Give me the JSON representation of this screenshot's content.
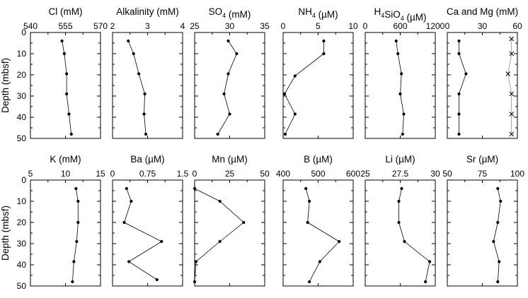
{
  "chart_data": [
    {
      "type": "line",
      "title": "Cl (mM)",
      "xlim": [
        540,
        570
      ],
      "xticks": [
        "540",
        "555",
        "570"
      ],
      "ylabel": "Depth (mbsf)",
      "ylim": [
        0,
        50
      ],
      "yticks": [
        "0",
        "10",
        "20",
        "30",
        "40",
        "50"
      ],
      "series": [
        {
          "x": [
            553.5,
            554.5,
            555.5,
            555.5,
            556.5,
            557.5
          ],
          "y": [
            4,
            10,
            19.5,
            29,
            38.5,
            48
          ]
        }
      ]
    },
    {
      "type": "line",
      "title": "Alkalinity (mM)",
      "xlim": [
        2,
        4
      ],
      "xticks": [
        "2",
        "3",
        "4"
      ],
      "ylim": [
        0,
        50
      ],
      "series": [
        {
          "x": [
            2.45,
            2.6,
            2.75,
            2.92,
            2.9,
            2.95
          ],
          "y": [
            4,
            10,
            19.5,
            29,
            38.5,
            48
          ]
        }
      ]
    },
    {
      "type": "line",
      "title": "SO4 (mM)",
      "title_parts": {
        "base": "SO",
        "sub": "4",
        "rest": " (mM)"
      },
      "xlim": [
        25,
        35
      ],
      "xticks": [
        "25",
        "30",
        "35"
      ],
      "ylim": [
        0,
        50
      ],
      "series": [
        {
          "x": [
            29.8,
            31.0,
            29.8,
            29.2,
            30.0,
            28.3
          ],
          "y": [
            4,
            10,
            19.5,
            29,
            38.5,
            48
          ]
        }
      ]
    },
    {
      "type": "line",
      "title": "NH4 (µM)",
      "title_parts": {
        "base": "NH",
        "sub": "4",
        "rest": " (µM)"
      },
      "xlim": [
        0,
        10
      ],
      "xticks": [
        "0",
        "5",
        "10"
      ],
      "ylim": [
        0,
        50
      ],
      "series": [
        {
          "x": [
            5.8,
            5.8,
            1.7,
            0.2,
            1.7,
            0.3
          ],
          "y": [
            4,
            10,
            20.5,
            29,
            38.5,
            48
          ]
        }
      ]
    },
    {
      "type": "line",
      "title": "H4SiO4 (µM)",
      "title_parts": {
        "base": "H",
        "sub": "4",
        "rest": "SiO",
        "sub2": "4",
        "rest2": " (µM)"
      },
      "xlim": [
        0,
        1200
      ],
      "xticks": [
        "0",
        "600",
        "1200"
      ],
      "ylim": [
        0,
        50
      ],
      "series": [
        {
          "x": [
            530,
            560,
            620,
            600,
            660,
            640
          ],
          "y": [
            4,
            10,
            19.5,
            29,
            38.5,
            48
          ]
        }
      ]
    },
    {
      "type": "line",
      "title": "Ca and Mg (mM)",
      "xlim": [
        0,
        60
      ],
      "xticks": [
        "0",
        "30",
        "60"
      ],
      "ylim": [
        0,
        50
      ],
      "series": [
        {
          "name": "Ca",
          "marker": "dot",
          "x": [
            10,
            10,
            16,
            10,
            10,
            10
          ],
          "y": [
            4,
            10,
            19.5,
            29,
            38.5,
            48
          ]
        },
        {
          "name": "Mg",
          "marker": "x",
          "x": [
            55,
            55,
            52,
            55,
            55,
            55
          ],
          "y": [
            3,
            10,
            19.5,
            29,
            38.5,
            48
          ]
        }
      ]
    },
    {
      "type": "line",
      "title": "K (mM)",
      "xlim": [
        5,
        15
      ],
      "xticks": [
        "5",
        "10",
        "15"
      ],
      "ylabel": "Depth (mbsf)",
      "ylim": [
        0,
        50
      ],
      "yticks": [
        "0",
        "10",
        "20",
        "30",
        "40",
        "50"
      ],
      "series": [
        {
          "x": [
            11.5,
            11.8,
            11.8,
            11.6,
            11.2,
            11.0
          ],
          "y": [
            4,
            10,
            20,
            29,
            38.5,
            48
          ]
        }
      ]
    },
    {
      "type": "line",
      "title": "Ba (µM)",
      "xlim": [
        0,
        1.5
      ],
      "xticks": [
        "0",
        "0.75",
        "1.5"
      ],
      "ylim": [
        0,
        50
      ],
      "series": [
        {
          "x": [
            0.3,
            0.4,
            0.25,
            1.05,
            0.35,
            0.95
          ],
          "y": [
            4,
            10,
            20,
            29,
            38.5,
            47
          ]
        }
      ]
    },
    {
      "type": "line",
      "title": "Mn (µM)",
      "xlim": [
        0,
        50
      ],
      "xticks": [
        "0",
        "25",
        "50"
      ],
      "ylim": [
        0,
        50
      ],
      "series": [
        {
          "x": [
            0,
            18,
            35,
            18,
            1,
            0
          ],
          "y": [
            4,
            10,
            20,
            29,
            38.5,
            48
          ]
        }
      ]
    },
    {
      "type": "line",
      "title": "B (µM)",
      "xlim": [
        400,
        600
      ],
      "xticks": [
        "400",
        "500",
        "600"
      ],
      "ylim": [
        0,
        50
      ],
      "series": [
        {
          "x": [
            465,
            475,
            470,
            560,
            505,
            475
          ],
          "y": [
            4,
            10,
            20,
            29,
            38.5,
            48
          ]
        }
      ]
    },
    {
      "type": "line",
      "title": "Li (µM)",
      "xlim": [
        25,
        30
      ],
      "xticks": [
        "25",
        "27.5",
        "30"
      ],
      "ylim": [
        0,
        50
      ],
      "series": [
        {
          "x": [
            27.6,
            27.4,
            27.4,
            27.8,
            29.6,
            29.3
          ],
          "y": [
            4,
            10,
            20,
            29,
            38.5,
            48
          ]
        }
      ]
    },
    {
      "type": "line",
      "title": "Sr (µM)",
      "xlim": [
        50,
        100
      ],
      "xticks": [
        "50",
        "75",
        "100"
      ],
      "ylim": [
        0,
        50
      ],
      "series": [
        {
          "x": [
            86,
            88,
            86,
            83,
            87,
            86
          ],
          "y": [
            4,
            10,
            20,
            29,
            38.5,
            48
          ]
        }
      ]
    }
  ]
}
